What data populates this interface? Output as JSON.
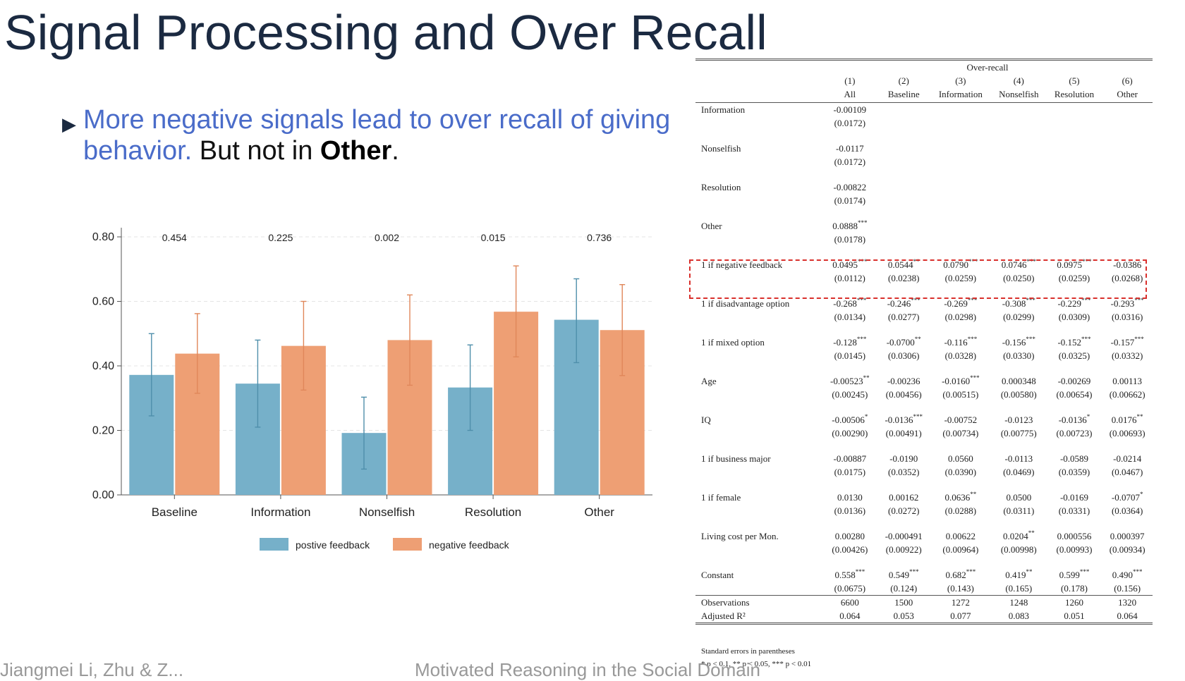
{
  "slide": {
    "title": "Signal Processing and Over Recall",
    "bullet_blue": "More negative signals lead to over recall of giving behavior.",
    "bullet_rest_1": " But not in ",
    "bullet_bold": "Other",
    "bullet_rest_2": ".",
    "footer_left": "Jiangmei Li, Zhu & Z...",
    "footer_center": "Motivated Reasoning in the Social Domain"
  },
  "colors": {
    "positive": "#76b0c9",
    "negative": "#ee9f74",
    "title": "#1b2a41",
    "bullet_blue": "#4a6cc9",
    "highlight": "#d9302c"
  },
  "chart_data": {
    "type": "bar",
    "categories": [
      "Baseline",
      "Information",
      "Nonselfish",
      "Resolution",
      "Other"
    ],
    "series": [
      {
        "name": "postive feedback",
        "values": [
          0.372,
          0.345,
          0.192,
          0.333,
          0.543
        ],
        "ci_low": [
          0.245,
          0.21,
          0.08,
          0.2,
          0.41
        ],
        "ci_high": [
          0.5,
          0.48,
          0.303,
          0.465,
          0.67
        ]
      },
      {
        "name": "negative feedback",
        "values": [
          0.438,
          0.462,
          0.48,
          0.568,
          0.511
        ],
        "ci_low": [
          0.315,
          0.325,
          0.34,
          0.428,
          0.37
        ],
        "ci_high": [
          0.562,
          0.6,
          0.62,
          0.71,
          0.652
        ]
      }
    ],
    "p_values": [
      "0.454",
      "0.225",
      "0.002",
      "0.015",
      "0.736"
    ],
    "yticks": [
      "0.00",
      "0.20",
      "0.40",
      "0.60",
      "0.80"
    ],
    "ylim": [
      0,
      0.8
    ],
    "grid": true,
    "legend_position": "bottom"
  },
  "table": {
    "group_header": "Over-recall",
    "col_numbers": [
      "(1)",
      "(2)",
      "(3)",
      "(4)",
      "(5)",
      "(6)"
    ],
    "col_names": [
      "All",
      "Baseline",
      "Information",
      "Nonselfish",
      "Resolution",
      "Other"
    ],
    "rows": [
      {
        "label": "Information",
        "coef": [
          "-0.00109",
          "",
          "",
          "",
          "",
          ""
        ],
        "stars": [
          "",
          "",
          "",
          "",
          "",
          ""
        ],
        "se": [
          "(0.0172)",
          "",
          "",
          "",
          "",
          ""
        ]
      },
      {
        "label": "Nonselfish",
        "coef": [
          "-0.0117",
          "",
          "",
          "",
          "",
          ""
        ],
        "stars": [
          "",
          "",
          "",
          "",
          "",
          ""
        ],
        "se": [
          "(0.0172)",
          "",
          "",
          "",
          "",
          ""
        ]
      },
      {
        "label": "Resolution",
        "coef": [
          "-0.00822",
          "",
          "",
          "",
          "",
          ""
        ],
        "stars": [
          "",
          "",
          "",
          "",
          "",
          ""
        ],
        "se": [
          "(0.0174)",
          "",
          "",
          "",
          "",
          ""
        ]
      },
      {
        "label": "Other",
        "coef": [
          "0.0888",
          "",
          "",
          "",
          "",
          ""
        ],
        "stars": [
          "***",
          "",
          "",
          "",
          "",
          ""
        ],
        "se": [
          "(0.0178)",
          "",
          "",
          "",
          "",
          ""
        ]
      },
      {
        "label": "1 if negative feedback",
        "coef": [
          "0.0495",
          "0.0544",
          "0.0790",
          "0.0746",
          "0.0975",
          "-0.0386"
        ],
        "stars": [
          "***",
          "**",
          "***",
          "***",
          "***",
          ""
        ],
        "se": [
          "(0.0112)",
          "(0.0238)",
          "(0.0259)",
          "(0.0250)",
          "(0.0259)",
          "(0.0268)"
        ]
      },
      {
        "label": "1 if disadvantage option",
        "coef": [
          "-0.268",
          "-0.246",
          "-0.269",
          "-0.308",
          "-0.229",
          "-0.293"
        ],
        "stars": [
          "***",
          "***",
          "***",
          "***",
          "***",
          "***"
        ],
        "se": [
          "(0.0134)",
          "(0.0277)",
          "(0.0298)",
          "(0.0299)",
          "(0.0309)",
          "(0.0316)"
        ]
      },
      {
        "label": "1 if mixed option",
        "coef": [
          "-0.128",
          "-0.0700",
          "-0.116",
          "-0.156",
          "-0.152",
          "-0.157"
        ],
        "stars": [
          "***",
          "**",
          "***",
          "***",
          "***",
          "***"
        ],
        "se": [
          "(0.0145)",
          "(0.0306)",
          "(0.0328)",
          "(0.0330)",
          "(0.0325)",
          "(0.0332)"
        ]
      },
      {
        "label": "Age",
        "coef": [
          "-0.00523",
          "-0.00236",
          "-0.0160",
          "0.000348",
          "-0.00269",
          "0.00113"
        ],
        "stars": [
          "**",
          "",
          "***",
          "",
          "",
          ""
        ],
        "se": [
          "(0.00245)",
          "(0.00456)",
          "(0.00515)",
          "(0.00580)",
          "(0.00654)",
          "(0.00662)"
        ]
      },
      {
        "label": "IQ",
        "coef": [
          "-0.00506",
          "-0.0136",
          "-0.00752",
          "-0.0123",
          "-0.0136",
          "0.0176"
        ],
        "stars": [
          "*",
          "***",
          "",
          "",
          "*",
          "**"
        ],
        "se": [
          "(0.00290)",
          "(0.00491)",
          "(0.00734)",
          "(0.00775)",
          "(0.00723)",
          "(0.00693)"
        ]
      },
      {
        "label": "1 if business major",
        "coef": [
          "-0.00887",
          "-0.0190",
          "0.0560",
          "-0.0113",
          "-0.0589",
          "-0.0214"
        ],
        "stars": [
          "",
          "",
          "",
          "",
          "",
          ""
        ],
        "se": [
          "(0.0175)",
          "(0.0352)",
          "(0.0390)",
          "(0.0469)",
          "(0.0359)",
          "(0.0467)"
        ]
      },
      {
        "label": "1 if female",
        "coef": [
          "0.0130",
          "0.00162",
          "0.0636",
          "0.0500",
          "-0.0169",
          "-0.0707"
        ],
        "stars": [
          "",
          "",
          "**",
          "",
          "",
          "*"
        ],
        "se": [
          "(0.0136)",
          "(0.0272)",
          "(0.0288)",
          "(0.0311)",
          "(0.0331)",
          "(0.0364)"
        ]
      },
      {
        "label": "Living cost per Mon.",
        "coef": [
          "0.00280",
          "-0.000491",
          "0.00622",
          "0.0204",
          "0.000556",
          "0.000397"
        ],
        "stars": [
          "",
          "",
          "",
          "**",
          "",
          ""
        ],
        "se": [
          "(0.00426)",
          "(0.00922)",
          "(0.00964)",
          "(0.00998)",
          "(0.00993)",
          "(0.00934)"
        ]
      },
      {
        "label": "Constant",
        "coef": [
          "0.558",
          "0.549",
          "0.682",
          "0.419",
          "0.599",
          "0.490"
        ],
        "stars": [
          "***",
          "***",
          "***",
          "**",
          "***",
          "***"
        ],
        "se": [
          "(0.0675)",
          "(0.124)",
          "(0.143)",
          "(0.165)",
          "(0.178)",
          "(0.156)"
        ]
      }
    ],
    "observations_label": "Observations",
    "observations": [
      "6600",
      "1500",
      "1272",
      "1248",
      "1260",
      "1320"
    ],
    "adjr2_label": "Adjusted R²",
    "adjr2": [
      "0.064",
      "0.053",
      "0.077",
      "0.083",
      "0.051",
      "0.064"
    ],
    "note_1": "Standard errors in parentheses",
    "note_2": "* p < 0.1, ** p < 0.05, *** p < 0.01"
  }
}
